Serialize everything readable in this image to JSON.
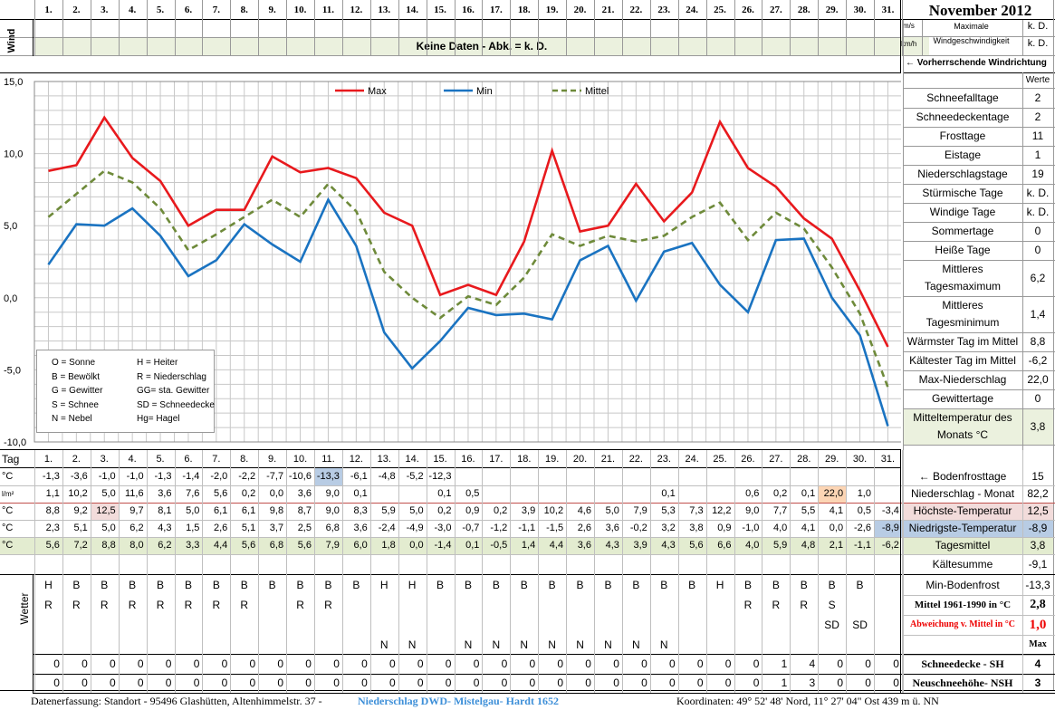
{
  "title": "November 2012",
  "days": [
    "1.",
    "2.",
    "3.",
    "4.",
    "5.",
    "6.",
    "7.",
    "8.",
    "9.",
    "10.",
    "11.",
    "12.",
    "13.",
    "14.",
    "15.",
    "16.",
    "17.",
    "18.",
    "19.",
    "20.",
    "21.",
    "22.",
    "23.",
    "24.",
    "25.",
    "26.",
    "27.",
    "28.",
    "29.",
    "30.",
    "31."
  ],
  "wind": {
    "side_label": "Wind",
    "unit_ms": "m/s",
    "unit_kmh": "km/h",
    "banner": "Keine Daten - Abk. = k. D.",
    "max_label_1": "Maximale",
    "max_label_2": "Windgeschwindigkeit",
    "max_ms": "k. D.",
    "max_kmh": "k. D.",
    "direction_label": "← Vorherrschende Windrichtung"
  },
  "colors": {
    "max": "#e8191d",
    "min": "#1a73c1",
    "mean": "#6e8a3a",
    "mean_band": "#e3ecd0",
    "green_light": "#ebf1de",
    "pink": "#f2dcdb",
    "blue_hi": "#b8cce4",
    "orange_hi": "#fcd5b4"
  },
  "chart_data": {
    "type": "line",
    "x": [
      1,
      2,
      3,
      4,
      5,
      6,
      7,
      8,
      9,
      10,
      11,
      12,
      13,
      14,
      15,
      16,
      17,
      18,
      19,
      20,
      21,
      22,
      23,
      24,
      25,
      26,
      27,
      28,
      29,
      30,
      31
    ],
    "series": [
      {
        "name": "Max",
        "values": [
          8.8,
          9.2,
          12.5,
          9.7,
          8.1,
          5.0,
          6.1,
          6.1,
          9.8,
          8.7,
          9.0,
          8.3,
          5.9,
          5.0,
          0.2,
          0.9,
          0.2,
          3.9,
          10.2,
          4.6,
          5.0,
          7.9,
          5.3,
          7.3,
          12.2,
          9.0,
          7.7,
          5.5,
          4.1,
          0.5,
          -3.4
        ]
      },
      {
        "name": "Min",
        "values": [
          2.3,
          5.1,
          5.0,
          6.2,
          4.3,
          1.5,
          2.6,
          5.1,
          3.7,
          2.5,
          6.8,
          3.6,
          -2.4,
          -4.9,
          -3.0,
          -0.7,
          -1.2,
          -1.1,
          -1.5,
          2.6,
          3.6,
          -0.2,
          3.2,
          3.8,
          0.9,
          -1.0,
          4.0,
          4.1,
          0.0,
          -2.6,
          -8.9
        ]
      },
      {
        "name": "Mittel",
        "values": [
          5.6,
          7.2,
          8.8,
          8.0,
          6.2,
          3.3,
          4.4,
          5.6,
          6.8,
          5.6,
          7.9,
          6.0,
          1.8,
          0.0,
          -1.4,
          0.1,
          -0.5,
          1.4,
          4.4,
          3.6,
          4.3,
          3.9,
          4.3,
          5.6,
          6.6,
          4.0,
          5.9,
          4.8,
          2.1,
          -1.1,
          -6.2
        ]
      }
    ],
    "ylim": [
      -10,
      15
    ],
    "yticks": [
      "15,0",
      "10,0",
      "5,0",
      "0,0",
      "-5,0",
      "-10,0"
    ],
    "legend": [
      "Max",
      "Min",
      "Mittel"
    ],
    "legend_position": "top"
  },
  "weather_legend": [
    [
      "O = Sonne",
      "H = Heiter"
    ],
    [
      "B = Bewölkt",
      "R = Niederschlag"
    ],
    [
      "G = Gewitter",
      "GG= sta. Gewitter"
    ],
    [
      "S = Schnee",
      "SD = Schneedecke"
    ],
    [
      "N = Nebel",
      "Hg= Hagel"
    ]
  ],
  "stats": {
    "werte_label": "Werte",
    "rows": [
      {
        "label": "Schneefalltage",
        "value": "2"
      },
      {
        "label": "Schneedeckentage",
        "value": "2"
      },
      {
        "label": "Frosttage",
        "value": "11"
      },
      {
        "label": "Eistage",
        "value": "1"
      },
      {
        "label": "Niederschlagstage",
        "value": "19"
      },
      {
        "label": "Stürmische Tage",
        "value": "k. D."
      },
      {
        "label": "Windige Tage",
        "value": "k. D."
      },
      {
        "label": "Sommertage",
        "value": "0"
      },
      {
        "label": "Heiße Tage",
        "value": "0"
      },
      {
        "label": "Mittleres",
        "label2": "Tagesmaximum",
        "value": "6,2"
      },
      {
        "label": "Mittleres",
        "label2": "Tagesminimum",
        "value": "1,4"
      },
      {
        "label": "Wärmster Tag im Mittel",
        "value": "8,8"
      },
      {
        "label": "Kältester Tag im Mittel",
        "value": "-6,2"
      },
      {
        "label": "Max-Niederschlag",
        "value": "22,0"
      },
      {
        "label": "Gewittertage",
        "value": "0"
      },
      {
        "label": "Mitteltemperatur des",
        "label2": "Monats °C",
        "value": "3,8"
      }
    ]
  },
  "table": {
    "tag_label": "Tag",
    "rows": [
      {
        "unit": "°C",
        "label": "← Bodenfrosttage",
        "total": "15",
        "values": [
          "-1,3",
          "-3,6",
          "-1,0",
          "-1,0",
          "-1,3",
          "-1,4",
          "-2,0",
          "-2,2",
          "-7,7",
          "-10,6",
          "-13,3",
          "-6,1",
          "-4,8",
          "-5,2",
          "-12,3",
          "",
          "",
          "",
          "",
          "",
          "",
          "",
          "",
          "",
          "",
          "",
          "",
          "",
          "",
          "",
          ""
        ]
      },
      {
        "unit": "l/m²",
        "label": "Niederschlag - Monat",
        "total": "82,2",
        "values": [
          "1,1",
          "10,2",
          "5,0",
          "11,6",
          "3,6",
          "7,6",
          "5,6",
          "0,2",
          "0,0",
          "3,6",
          "9,0",
          "0,1",
          "",
          "",
          "0,1",
          "0,5",
          "",
          "",
          "",
          "",
          "",
          "",
          "0,1",
          "",
          "",
          "0,6",
          "0,2",
          "0,1",
          "22,0",
          "1,0",
          ""
        ]
      },
      {
        "unit": "°C",
        "label": "Höchste-Temperatur",
        "total": "12,5",
        "values": [
          "8,8",
          "9,2",
          "12,5",
          "9,7",
          "8,1",
          "5,0",
          "6,1",
          "6,1",
          "9,8",
          "8,7",
          "9,0",
          "8,3",
          "5,9",
          "5,0",
          "0,2",
          "0,9",
          "0,2",
          "3,9",
          "10,2",
          "4,6",
          "5,0",
          "7,9",
          "5,3",
          "7,3",
          "12,2",
          "9,0",
          "7,7",
          "5,5",
          "4,1",
          "0,5",
          "-3,4"
        ]
      },
      {
        "unit": "°C",
        "label": "Niedrigste-Temperatur",
        "total": "-8,9",
        "values": [
          "2,3",
          "5,1",
          "5,0",
          "6,2",
          "4,3",
          "1,5",
          "2,6",
          "5,1",
          "3,7",
          "2,5",
          "6,8",
          "3,6",
          "-2,4",
          "-4,9",
          "-3,0",
          "-0,7",
          "-1,2",
          "-1,1",
          "-1,5",
          "2,6",
          "3,6",
          "-0,2",
          "3,2",
          "3,8",
          "0,9",
          "-1,0",
          "4,0",
          "4,1",
          "0,0",
          "-2,6",
          "-8,9"
        ]
      },
      {
        "unit": "°C",
        "label": "Tagesmittel",
        "total": "3,8",
        "values": [
          "5,6",
          "7,2",
          "8,8",
          "8,0",
          "6,2",
          "3,3",
          "4,4",
          "5,6",
          "6,8",
          "5,6",
          "7,9",
          "6,0",
          "1,8",
          "0,0",
          "-1,4",
          "0,1",
          "-0,5",
          "1,4",
          "4,4",
          "3,6",
          "4,3",
          "3,9",
          "4,3",
          "5,6",
          "6,6",
          "4,0",
          "5,9",
          "4,8",
          "2,1",
          "-1,1",
          "-6,2"
        ]
      }
    ],
    "kaeltesumme": {
      "label": "Kältesumme",
      "value": "-9,1"
    },
    "weather_side_label": "Wetter",
    "weather": [
      [
        "H",
        "B",
        "B",
        "B",
        "B",
        "B",
        "B",
        "B",
        "B",
        "B",
        "B",
        "B",
        "H",
        "H",
        "B",
        "B",
        "B",
        "B",
        "B",
        "B",
        "B",
        "B",
        "B",
        "B",
        "H",
        "B",
        "B",
        "B",
        "B",
        "B",
        ""
      ],
      [
        "R",
        "R",
        "R",
        "R",
        "R",
        "R",
        "R",
        "R",
        "",
        "R",
        "R",
        "",
        "",
        "",
        "",
        "",
        "",
        "",
        "",
        "",
        "",
        "",
        "",
        "",
        "",
        "R",
        "R",
        "R",
        "S",
        "",
        ""
      ],
      [
        "",
        "",
        "",
        "",
        "",
        "",
        "",
        "",
        "",
        "",
        "",
        "",
        "",
        "",
        "",
        "",
        "",
        "",
        "",
        "",
        "",
        "",
        "",
        "",
        "",
        "",
        "",
        "",
        "SD",
        "SD",
        ""
      ],
      [
        "",
        "",
        "",
        "",
        "",
        "",
        "",
        "",
        "",
        "",
        "",
        "",
        "N",
        "N",
        "",
        "N",
        "N",
        "N",
        "N",
        "N",
        "N",
        "N",
        "N",
        "",
        "",
        "",
        "",
        "",
        "",
        "",
        ""
      ]
    ],
    "weather_right": [
      {
        "label": "Min-Bodenfrost",
        "value": "-13,3"
      },
      {
        "label": "Mittel 1961-1990 in °C",
        "value": "2,8"
      },
      {
        "label": "Abweichung v. Mittel in °C",
        "value": "1,0"
      },
      {
        "label": "",
        "value": "Max"
      }
    ],
    "snow": [
      {
        "label": "Schneedecke -  SH",
        "max": "4",
        "values": [
          "0",
          "0",
          "0",
          "0",
          "0",
          "0",
          "0",
          "0",
          "0",
          "0",
          "0",
          "0",
          "0",
          "0",
          "0",
          "0",
          "0",
          "0",
          "0",
          "0",
          "0",
          "0",
          "0",
          "0",
          "0",
          "0",
          "1",
          "4",
          "0",
          "0",
          "0"
        ]
      },
      {
        "label": "Neuschneehöhe- NSH",
        "max": "3",
        "values": [
          "0",
          "0",
          "0",
          "0",
          "0",
          "0",
          "0",
          "0",
          "0",
          "0",
          "0",
          "0",
          "0",
          "0",
          "0",
          "0",
          "0",
          "0",
          "0",
          "0",
          "0",
          "0",
          "0",
          "0",
          "0",
          "0",
          "1",
          "3",
          "0",
          "0",
          "0"
        ]
      }
    ]
  },
  "footer": {
    "left": "Datenerfassung:  Standort -  95496  Glashütten, Altenhimmelstr. 37 -",
    "link": "Niederschlag DWD- Mistelgau- Hardt 1652",
    "right": "Koordinaten:  49° 52' 48' Nord,   11° 27' 04\" Ost   439 m ü. NN"
  }
}
